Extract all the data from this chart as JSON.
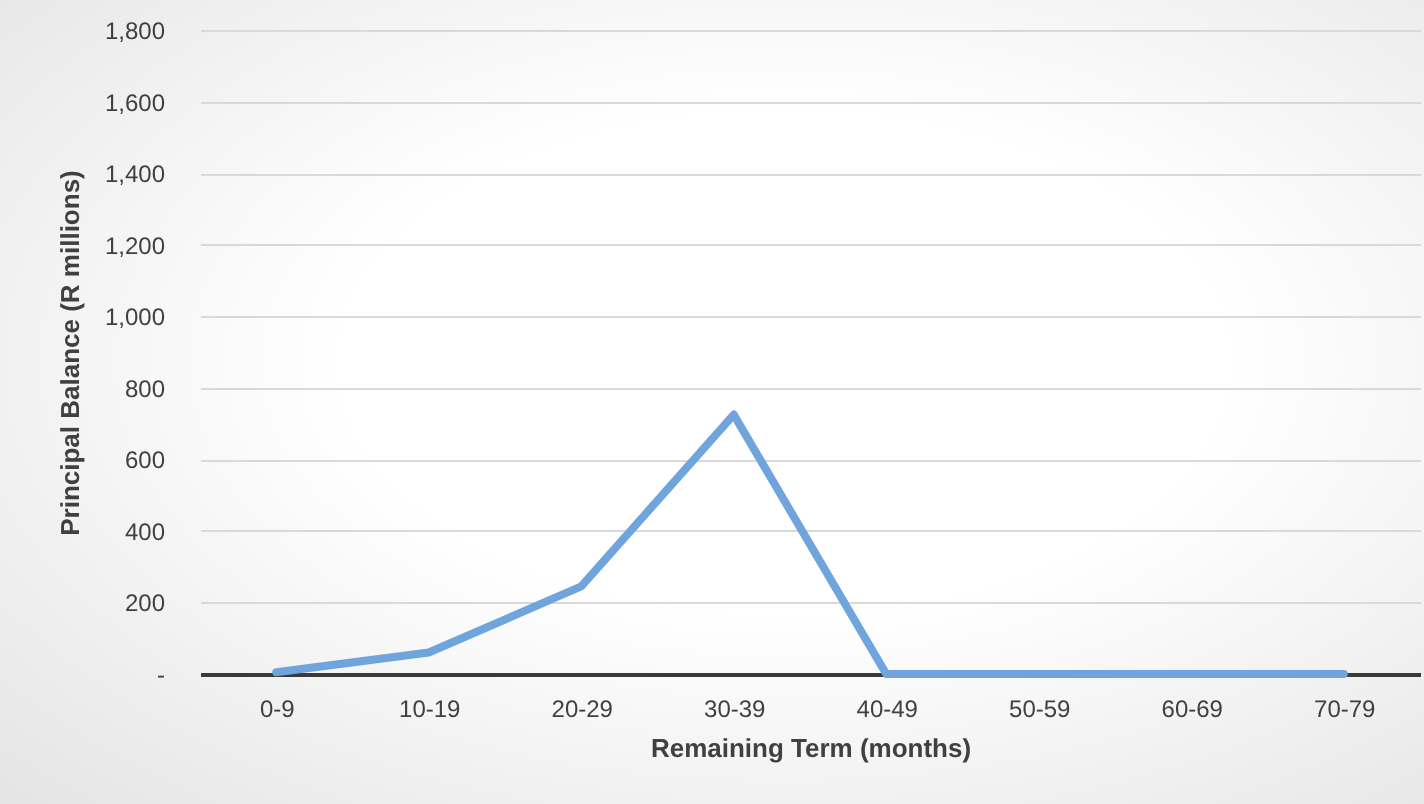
{
  "chart_data": {
    "type": "line",
    "xlabel": "Remaining Term (months)",
    "ylabel": "Principal Balance (R millions)",
    "categories": [
      "0-9",
      "10-19",
      "20-29",
      "30-39",
      "40-49",
      "50-59",
      "60-69",
      "70-79"
    ],
    "series": [
      {
        "color": "#6fa5dc",
        "values": [
          5,
          60,
          245,
          725,
          0,
          0,
          0,
          0
        ]
      }
    ],
    "ylim": [
      0,
      1800
    ],
    "yticks": [
      {
        "value": 0,
        "label": "-"
      },
      {
        "value": 200,
        "label": "200"
      },
      {
        "value": 400,
        "label": "400"
      },
      {
        "value": 600,
        "label": "600"
      },
      {
        "value": 800,
        "label": "800"
      },
      {
        "value": 1000,
        "label": "1,000"
      },
      {
        "value": 1200,
        "label": "1,200"
      },
      {
        "value": 1400,
        "label": "1,400"
      },
      {
        "value": 1600,
        "label": "1,600"
      },
      {
        "value": 1800,
        "label": "1,800"
      }
    ],
    "grid": "y",
    "marker": "none",
    "line_style": "solid"
  }
}
